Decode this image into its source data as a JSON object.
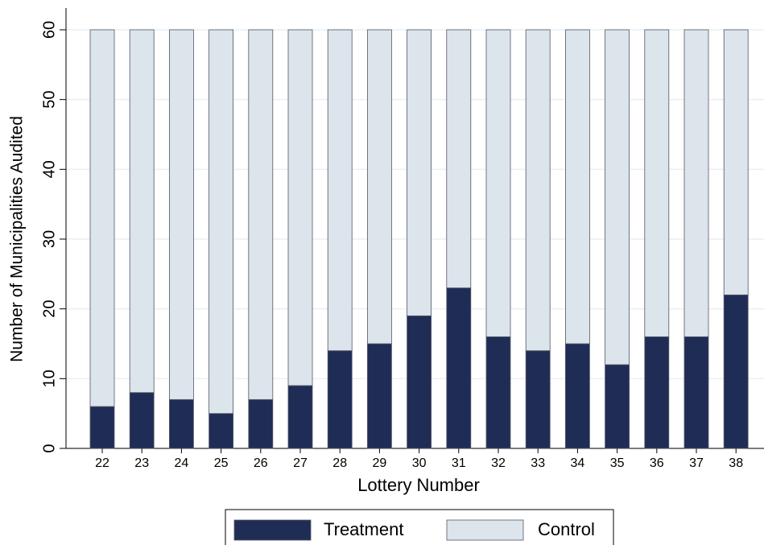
{
  "chart_data": {
    "type": "stacked-bar",
    "x_label": "Lottery Number",
    "y_label": "Number of Municipalities Audited",
    "categories": [
      "22",
      "23",
      "24",
      "25",
      "26",
      "27",
      "28",
      "29",
      "30",
      "31",
      "32",
      "33",
      "34",
      "35",
      "36",
      "37",
      "38"
    ],
    "series": [
      {
        "name": "Treatment",
        "color": "#1f2d56",
        "values": [
          6,
          8,
          7,
          5,
          7,
          9,
          14,
          15,
          19,
          23,
          16,
          14,
          15,
          12,
          16,
          16,
          22
        ]
      },
      {
        "name": "Control",
        "color": "#dbe5eb",
        "values": [
          54,
          52,
          53,
          55,
          53,
          51,
          46,
          45,
          41,
          37,
          44,
          46,
          45,
          48,
          44,
          44,
          38
        ]
      }
    ],
    "ylim": [
      0,
      60
    ],
    "yticks": [
      0,
      10,
      20,
      30,
      40,
      50,
      60
    ],
    "grid": true
  }
}
